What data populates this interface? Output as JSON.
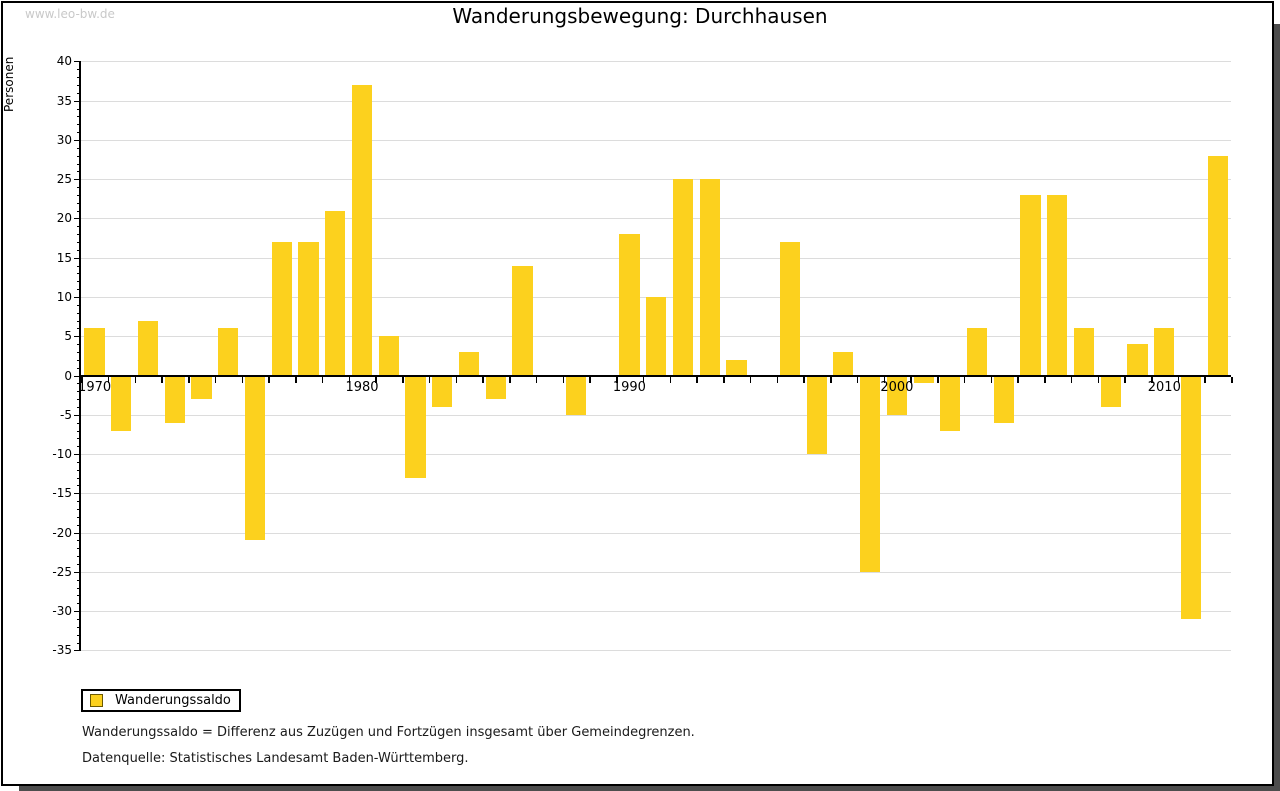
{
  "page": {
    "watermark": "www.leo-bw.de"
  },
  "chart_data": {
    "type": "bar",
    "title": "Wanderungsbewegung: Durchhausen",
    "ylabel": "Personen",
    "xlabel": "",
    "series_name": "Wanderungssaldo",
    "years": [
      1970,
      1971,
      1972,
      1973,
      1974,
      1975,
      1976,
      1977,
      1978,
      1979,
      1980,
      1981,
      1982,
      1983,
      1984,
      1985,
      1986,
      1987,
      1988,
      1989,
      1990,
      1991,
      1992,
      1993,
      1994,
      1995,
      1996,
      1997,
      1998,
      1999,
      2000,
      2001,
      2002,
      2003,
      2004,
      2005,
      2006,
      2007,
      2008,
      2009,
      2010,
      2011,
      2012
    ],
    "values": [
      6,
      -7,
      7,
      -6,
      -3,
      6,
      -21,
      17,
      17,
      21,
      37,
      5,
      -13,
      -4,
      3,
      -3,
      14,
      0,
      -5,
      0,
      18,
      10,
      25,
      25,
      2,
      0,
      17,
      -10,
      3,
      -25,
      -5,
      -1,
      -7,
      6,
      -6,
      23,
      23,
      6,
      -4,
      4,
      6,
      -31,
      28
    ],
    "ylim": [
      -35,
      40
    ],
    "ytick_step": 5,
    "xticks_labeled": [
      1970,
      1980,
      1990,
      2000,
      2010
    ],
    "grid": true,
    "bar_color": "#fcd11e",
    "legend_position": "bottom-left"
  },
  "legend": {
    "label": "Wanderungssaldo"
  },
  "footnotes": {
    "definition": "Wanderungssaldo = Differenz aus Zuzügen und Fortzügen insgesamt über Gemeindegrenzen.",
    "source": "Datenquelle: Statistisches Landesamt Baden-Württemberg."
  }
}
